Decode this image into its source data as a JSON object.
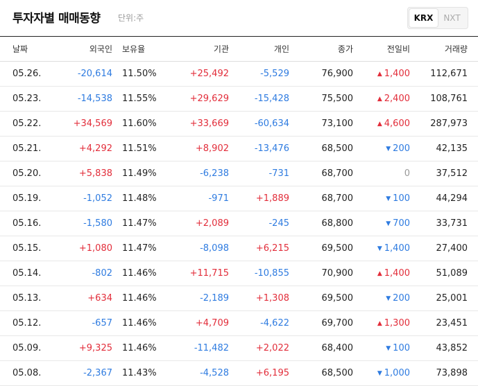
{
  "header": {
    "title": "투자자별 매매동향",
    "unit": "단위:주",
    "markets": [
      {
        "label": "KRX",
        "active": true
      },
      {
        "label": "NXT",
        "active": false
      }
    ]
  },
  "columns": [
    "날짜",
    "외국인",
    "보유율",
    "기관",
    "개인",
    "종가",
    "전일비",
    "거래량"
  ],
  "colors": {
    "up": "#e22d3a",
    "down": "#2e7be0",
    "flat": "#999999"
  },
  "rows": [
    {
      "date": "05.26.",
      "foreign": "-20,614",
      "hold": "11.50%",
      "inst": "+25,492",
      "indiv": "-5,529",
      "close": "76,900",
      "change": "1,400",
      "dir": "up",
      "volume": "112,671"
    },
    {
      "date": "05.23.",
      "foreign": "-14,538",
      "hold": "11.55%",
      "inst": "+29,629",
      "indiv": "-15,428",
      "close": "75,500",
      "change": "2,400",
      "dir": "up",
      "volume": "108,761"
    },
    {
      "date": "05.22.",
      "foreign": "+34,569",
      "hold": "11.60%",
      "inst": "+33,669",
      "indiv": "-60,634",
      "close": "73,100",
      "change": "4,600",
      "dir": "up",
      "volume": "287,973"
    },
    {
      "date": "05.21.",
      "foreign": "+4,292",
      "hold": "11.51%",
      "inst": "+8,902",
      "indiv": "-13,476",
      "close": "68,500",
      "change": "200",
      "dir": "down",
      "volume": "42,135"
    },
    {
      "date": "05.20.",
      "foreign": "+5,838",
      "hold": "11.49%",
      "inst": "-6,238",
      "indiv": "-731",
      "close": "68,700",
      "change": "0",
      "dir": "flat",
      "volume": "37,512"
    },
    {
      "date": "05.19.",
      "foreign": "-1,052",
      "hold": "11.48%",
      "inst": "-971",
      "indiv": "+1,889",
      "close": "68,700",
      "change": "100",
      "dir": "down",
      "volume": "44,294"
    },
    {
      "date": "05.16.",
      "foreign": "-1,580",
      "hold": "11.47%",
      "inst": "+2,089",
      "indiv": "-245",
      "close": "68,800",
      "change": "700",
      "dir": "down",
      "volume": "33,731"
    },
    {
      "date": "05.15.",
      "foreign": "+1,080",
      "hold": "11.47%",
      "inst": "-8,098",
      "indiv": "+6,215",
      "close": "69,500",
      "change": "1,400",
      "dir": "down",
      "volume": "27,400"
    },
    {
      "date": "05.14.",
      "foreign": "-802",
      "hold": "11.46%",
      "inst": "+11,715",
      "indiv": "-10,855",
      "close": "70,900",
      "change": "1,400",
      "dir": "up",
      "volume": "51,089"
    },
    {
      "date": "05.13.",
      "foreign": "+634",
      "hold": "11.46%",
      "inst": "-2,189",
      "indiv": "+1,308",
      "close": "69,500",
      "change": "200",
      "dir": "down",
      "volume": "25,001"
    },
    {
      "date": "05.12.",
      "foreign": "-657",
      "hold": "11.46%",
      "inst": "+4,709",
      "indiv": "-4,622",
      "close": "69,700",
      "change": "1,300",
      "dir": "up",
      "volume": "23,451"
    },
    {
      "date": "05.09.",
      "foreign": "+9,325",
      "hold": "11.46%",
      "inst": "-11,482",
      "indiv": "+2,022",
      "close": "68,400",
      "change": "100",
      "dir": "down",
      "volume": "43,852"
    },
    {
      "date": "05.08.",
      "foreign": "-2,367",
      "hold": "11.43%",
      "inst": "-4,528",
      "indiv": "+6,195",
      "close": "68,500",
      "change": "1,000",
      "dir": "down",
      "volume": "73,898"
    }
  ]
}
